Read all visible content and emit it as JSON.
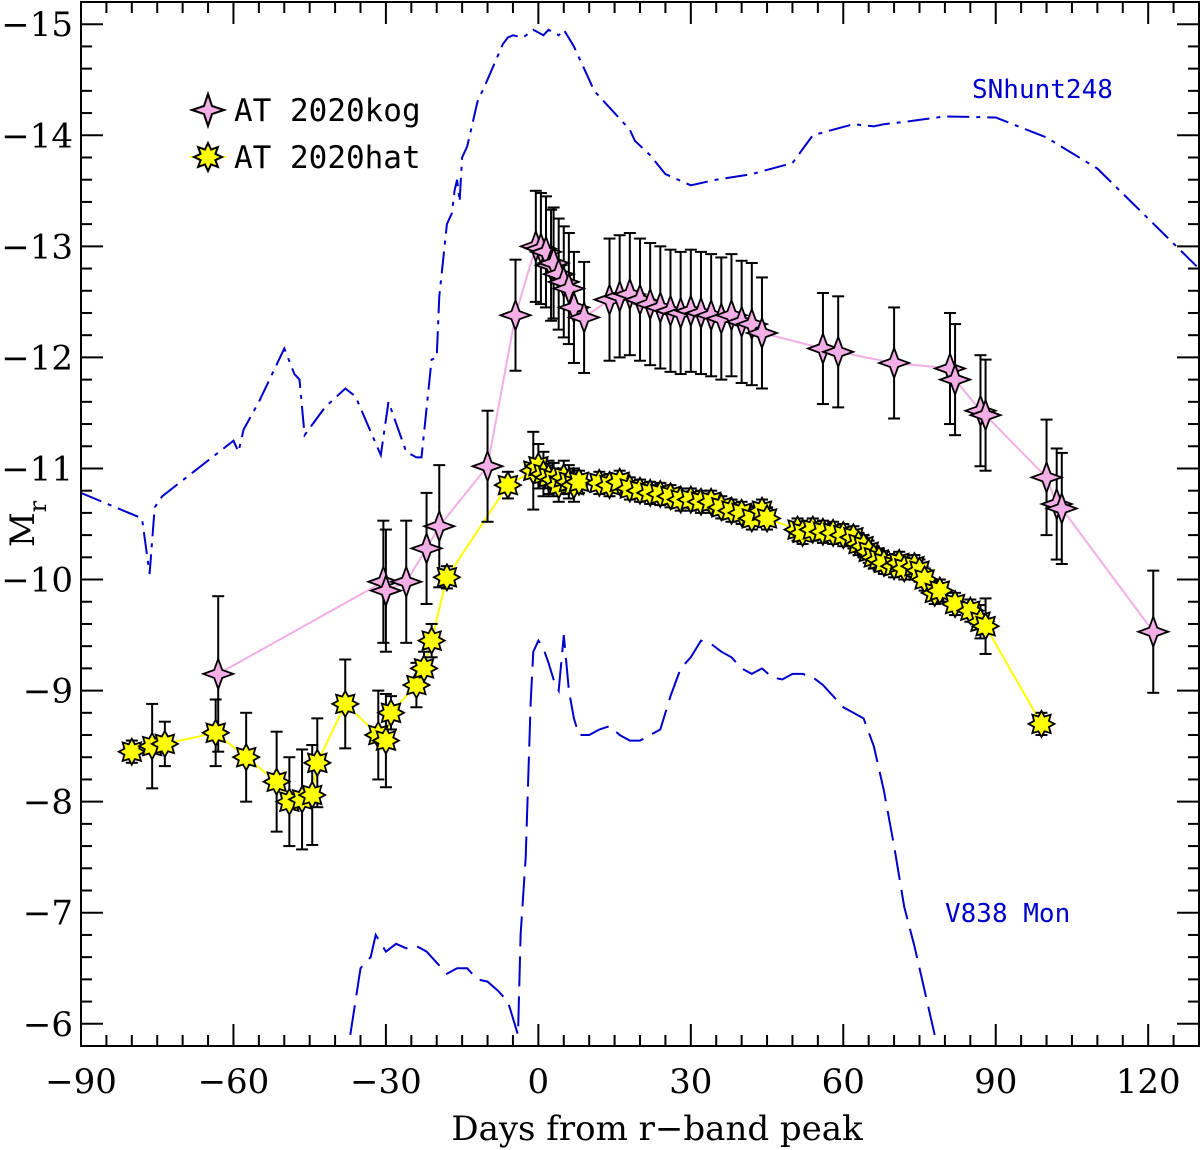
{
  "chart_data": {
    "type": "line",
    "xlabel": "Days from r−band peak",
    "ylabel_main": "M",
    "ylabel_sub": "r",
    "xlim": [
      -90,
      130
    ],
    "ylim": [
      -5.8,
      -15.2
    ],
    "y_inverted": true,
    "xticks": [
      -90,
      -60,
      -30,
      0,
      30,
      60,
      90,
      120
    ],
    "xtick_labels": [
      "−90",
      "−60",
      "−30",
      "0",
      "30",
      "60",
      "90",
      "120"
    ],
    "yticks": [
      -6,
      -7,
      -8,
      -9,
      -10,
      -11,
      -12,
      -13,
      -14,
      -15
    ],
    "ytick_labels": [
      "−6",
      "−7",
      "−8",
      "−9",
      "−10",
      "−11",
      "−12",
      "−13",
      "−14",
      "−15"
    ],
    "legend": {
      "placement": "top-left",
      "entries": [
        "AT 2020kog",
        "AT 2020hat"
      ]
    },
    "annotations": [
      "SNhunt248",
      "V838 Mon"
    ],
    "colors": {
      "kog_fill": "#f4aee6",
      "kog_line": "#f4aee6",
      "hat_fill": "#ffff00",
      "hat_line": "#ffff00",
      "reference": "#0000cc"
    },
    "series": [
      {
        "name": "AT 2020kog",
        "marker": "diamond",
        "points": [
          [
            -63,
            -9.15,
            0.7
          ],
          [
            -30.5,
            -9.98,
            0.55
          ],
          [
            -30,
            -9.9,
            0.55
          ],
          [
            -26,
            -9.98,
            0.55
          ],
          [
            -22,
            -10.28,
            0.5
          ],
          [
            -19.5,
            -10.48,
            0.55
          ],
          [
            -10,
            -11.02,
            0.5
          ],
          [
            -4.5,
            -12.38,
            0.5
          ],
          [
            -0.5,
            -13.0,
            0.5
          ],
          [
            0.5,
            -12.98,
            0.5
          ],
          [
            1.5,
            -12.95,
            0.5
          ],
          [
            2.5,
            -12.83,
            0.5
          ],
          [
            3,
            -12.85,
            0.5
          ],
          [
            4,
            -12.75,
            0.5
          ],
          [
            5,
            -12.68,
            0.5
          ],
          [
            6,
            -12.62,
            0.5
          ],
          [
            7,
            -12.45,
            0.5
          ],
          [
            9,
            -12.36,
            0.5
          ],
          [
            14,
            -12.52,
            0.55
          ],
          [
            16,
            -12.55,
            0.55
          ],
          [
            18,
            -12.57,
            0.55
          ],
          [
            20,
            -12.52,
            0.55
          ],
          [
            22,
            -12.48,
            0.55
          ],
          [
            24,
            -12.45,
            0.55
          ],
          [
            26,
            -12.42,
            0.55
          ],
          [
            28,
            -12.4,
            0.55
          ],
          [
            30,
            -12.42,
            0.55
          ],
          [
            32,
            -12.4,
            0.55
          ],
          [
            34,
            -12.38,
            0.55
          ],
          [
            36,
            -12.35,
            0.55
          ],
          [
            38,
            -12.38,
            0.55
          ],
          [
            40,
            -12.32,
            0.55
          ],
          [
            42,
            -12.3,
            0.55
          ],
          [
            44,
            -12.22,
            0.5
          ],
          [
            56,
            -12.08,
            0.5
          ],
          [
            59,
            -12.05,
            0.5
          ],
          [
            70,
            -11.95,
            0.5
          ],
          [
            81,
            -11.9,
            0.5
          ],
          [
            82,
            -11.8,
            0.5
          ],
          [
            87,
            -11.52,
            0.5
          ],
          [
            88,
            -11.48,
            0.5
          ],
          [
            100,
            -10.92,
            0.52
          ],
          [
            102,
            -10.68,
            0.5
          ],
          [
            103,
            -10.64,
            0.5
          ],
          [
            121,
            -9.53,
            0.55
          ]
        ]
      },
      {
        "name": "AT 2020hat",
        "marker": "star",
        "points": [
          [
            -80,
            -8.45,
            0.1
          ],
          [
            -76,
            -8.5,
            0.38
          ],
          [
            -73.5,
            -8.52,
            0.2
          ],
          [
            -63.5,
            -8.62,
            0.3
          ],
          [
            -57.5,
            -8.4,
            0.4
          ],
          [
            -51.5,
            -8.18,
            0.45
          ],
          [
            -49,
            -8.0,
            0.4
          ],
          [
            -46.5,
            -8.02,
            0.45
          ],
          [
            -44.5,
            -8.06,
            0.45
          ],
          [
            -43.5,
            -8.35,
            0.4
          ],
          [
            -38,
            -8.88,
            0.4
          ],
          [
            -31.5,
            -8.6,
            0.4
          ],
          [
            -30,
            -8.55,
            0.42
          ],
          [
            -29,
            -8.8,
            0.15
          ],
          [
            -24,
            -9.05,
            0.2
          ],
          [
            -22.5,
            -9.2,
            0.15
          ],
          [
            -21,
            -9.45,
            0.15
          ],
          [
            -18,
            -10.02,
            0.1
          ],
          [
            -6,
            -10.85,
            0.12
          ],
          [
            -1,
            -10.98,
            0.35
          ],
          [
            0,
            -11.02,
            0.2
          ],
          [
            1,
            -10.95,
            0.2
          ],
          [
            2,
            -10.92,
            0.15
          ],
          [
            3,
            -10.9,
            0.15
          ],
          [
            4,
            -10.85,
            0.15
          ],
          [
            5,
            -10.92,
            0.15
          ],
          [
            6,
            -10.88,
            0.15
          ],
          [
            7,
            -10.85,
            0.15
          ],
          [
            8,
            -10.88,
            0.1
          ],
          [
            12,
            -10.87,
            0.1
          ],
          [
            14,
            -10.85,
            0.1
          ],
          [
            16,
            -10.88,
            0.1
          ],
          [
            18,
            -10.82,
            0.1
          ],
          [
            20,
            -10.8,
            0.1
          ],
          [
            22,
            -10.78,
            0.1
          ],
          [
            24,
            -10.77,
            0.1
          ],
          [
            26,
            -10.75,
            0.1
          ],
          [
            28,
            -10.72,
            0.1
          ],
          [
            30,
            -10.72,
            0.1
          ],
          [
            32,
            -10.7,
            0.1
          ],
          [
            34,
            -10.7,
            0.1
          ],
          [
            36,
            -10.65,
            0.1
          ],
          [
            38,
            -10.62,
            0.1
          ],
          [
            40,
            -10.6,
            0.1
          ],
          [
            42,
            -10.55,
            0.1
          ],
          [
            44,
            -10.62,
            0.1
          ],
          [
            45,
            -10.55,
            0.1
          ],
          [
            51,
            -10.45,
            0.1
          ],
          [
            52,
            -10.42,
            0.1
          ],
          [
            54,
            -10.45,
            0.1
          ],
          [
            56,
            -10.43,
            0.1
          ],
          [
            58,
            -10.42,
            0.1
          ],
          [
            60,
            -10.4,
            0.1
          ],
          [
            62,
            -10.38,
            0.1
          ],
          [
            63,
            -10.32,
            0.1
          ],
          [
            64,
            -10.3,
            0.1
          ],
          [
            65,
            -10.25,
            0.1
          ],
          [
            66,
            -10.2,
            0.1
          ],
          [
            67,
            -10.18,
            0.1
          ],
          [
            68,
            -10.15,
            0.1
          ],
          [
            70,
            -10.12,
            0.1
          ],
          [
            71,
            -10.15,
            0.1
          ],
          [
            72,
            -10.1,
            0.1
          ],
          [
            74,
            -10.12,
            0.1
          ],
          [
            75,
            -10.08,
            0.1
          ],
          [
            76,
            -10.0,
            0.1
          ],
          [
            78,
            -9.88,
            0.1
          ],
          [
            79,
            -9.9,
            0.1
          ],
          [
            82,
            -9.78,
            0.1
          ],
          [
            85,
            -9.72,
            0.1
          ],
          [
            87,
            -9.62,
            0.15
          ],
          [
            88,
            -9.58,
            0.25
          ],
          [
            99,
            -8.7,
            0.1
          ]
        ]
      },
      {
        "name": "SNhunt248",
        "style": "dash-dot",
        "points": [
          [
            -90,
            -10.78
          ],
          [
            -78,
            -10.55
          ],
          [
            -76.5,
            -10.05
          ],
          [
            -75.5,
            -10.65
          ],
          [
            -74,
            -10.75
          ],
          [
            -60,
            -11.25
          ],
          [
            -59,
            -11.15
          ],
          [
            -58,
            -11.35
          ],
          [
            -55,
            -11.6
          ],
          [
            -50,
            -12.08
          ],
          [
            -48,
            -11.85
          ],
          [
            -47,
            -11.8
          ],
          [
            -46,
            -11.3
          ],
          [
            -42,
            -11.55
          ],
          [
            -38,
            -11.72
          ],
          [
            -36,
            -11.65
          ],
          [
            -31,
            -11.12
          ],
          [
            -29.5,
            -11.6
          ],
          [
            -26,
            -11.15
          ],
          [
            -24,
            -11.1
          ],
          [
            -23,
            -11.1
          ],
          [
            -21,
            -11.98
          ],
          [
            -20,
            -12.0
          ],
          [
            -19.5,
            -12.55
          ],
          [
            -18,
            -13.2
          ],
          [
            -17,
            -13.3
          ],
          [
            -16.5,
            -13.5
          ],
          [
            -16,
            -13.6
          ],
          [
            -15.5,
            -13.4
          ],
          [
            -15,
            -13.8
          ],
          [
            -14,
            -13.9
          ],
          [
            -12,
            -14.3
          ],
          [
            -10,
            -14.5
          ],
          [
            -7,
            -14.82
          ],
          [
            -6,
            -14.88
          ],
          [
            -5,
            -14.9
          ],
          [
            -3,
            -14.88
          ],
          [
            -1,
            -14.95
          ],
          [
            1,
            -14.9
          ],
          [
            2,
            -14.95
          ],
          [
            4,
            -14.9
          ],
          [
            5,
            -14.95
          ],
          [
            7,
            -14.8
          ],
          [
            9,
            -14.6
          ],
          [
            11,
            -14.4
          ],
          [
            15,
            -14.2
          ],
          [
            18,
            -14.05
          ],
          [
            19,
            -13.95
          ],
          [
            22,
            -13.82
          ],
          [
            25,
            -13.65
          ],
          [
            30,
            -13.55
          ],
          [
            35,
            -13.6
          ],
          [
            42,
            -13.65
          ],
          [
            50,
            -13.75
          ],
          [
            54,
            -14.0
          ],
          [
            58,
            -14.05
          ],
          [
            62,
            -14.1
          ],
          [
            66,
            -14.08
          ],
          [
            68,
            -14.1
          ],
          [
            72,
            -14.12
          ],
          [
            80,
            -14.17
          ],
          [
            90,
            -14.16
          ],
          [
            100,
            -13.98
          ],
          [
            110,
            -13.7
          ],
          [
            120,
            -13.25
          ],
          [
            130,
            -12.8
          ]
        ]
      },
      {
        "name": "V838 Mon",
        "style": "long-dash",
        "points": [
          [
            -37,
            -5.9
          ],
          [
            -36,
            -6.2
          ],
          [
            -35,
            -6.5
          ],
          [
            -33,
            -6.6
          ],
          [
            -32,
            -6.8
          ],
          [
            -30,
            -6.65
          ],
          [
            -28,
            -6.72
          ],
          [
            -26,
            -6.68
          ],
          [
            -24,
            -6.7
          ],
          [
            -22,
            -6.65
          ],
          [
            -20,
            -6.55
          ],
          [
            -18,
            -6.45
          ],
          [
            -16,
            -6.5
          ],
          [
            -14,
            -6.5
          ],
          [
            -12,
            -6.4
          ],
          [
            -10,
            -6.38
          ],
          [
            -8,
            -6.3
          ],
          [
            -6,
            -6.2
          ],
          [
            -4,
            -5.9
          ],
          [
            -3.5,
            -6.8
          ],
          [
            -2.5,
            -7.5
          ],
          [
            -2,
            -8.2
          ],
          [
            -1.5,
            -8.9
          ],
          [
            -1,
            -9.35
          ],
          [
            0,
            -9.45
          ],
          [
            1,
            -9.38
          ],
          [
            2,
            -9.25
          ],
          [
            3,
            -9.1
          ],
          [
            4,
            -9.0
          ],
          [
            5,
            -9.5
          ],
          [
            6,
            -9.0
          ],
          [
            7,
            -8.75
          ],
          [
            8,
            -8.6
          ],
          [
            10,
            -8.6
          ],
          [
            12,
            -8.65
          ],
          [
            14,
            -8.68
          ],
          [
            16,
            -8.6
          ],
          [
            18,
            -8.55
          ],
          [
            20,
            -8.55
          ],
          [
            22,
            -8.6
          ],
          [
            24,
            -8.65
          ],
          [
            26,
            -8.95
          ],
          [
            28,
            -9.2
          ],
          [
            30,
            -9.3
          ],
          [
            32,
            -9.45
          ],
          [
            34,
            -9.42
          ],
          [
            36,
            -9.35
          ],
          [
            38,
            -9.3
          ],
          [
            40,
            -9.2
          ],
          [
            42,
            -9.15
          ],
          [
            44,
            -9.2
          ],
          [
            46,
            -9.12
          ],
          [
            48,
            -9.1
          ],
          [
            50,
            -9.15
          ],
          [
            52,
            -9.15
          ],
          [
            54,
            -9.12
          ],
          [
            56,
            -9.05
          ],
          [
            58,
            -8.95
          ],
          [
            60,
            -8.85
          ],
          [
            62,
            -8.8
          ],
          [
            64,
            -8.75
          ],
          [
            66,
            -8.5
          ],
          [
            68,
            -8.1
          ],
          [
            70,
            -7.6
          ],
          [
            72,
            -7.05
          ],
          [
            74,
            -6.7
          ],
          [
            76,
            -6.3
          ],
          [
            78,
            -5.9
          ]
        ]
      }
    ]
  }
}
